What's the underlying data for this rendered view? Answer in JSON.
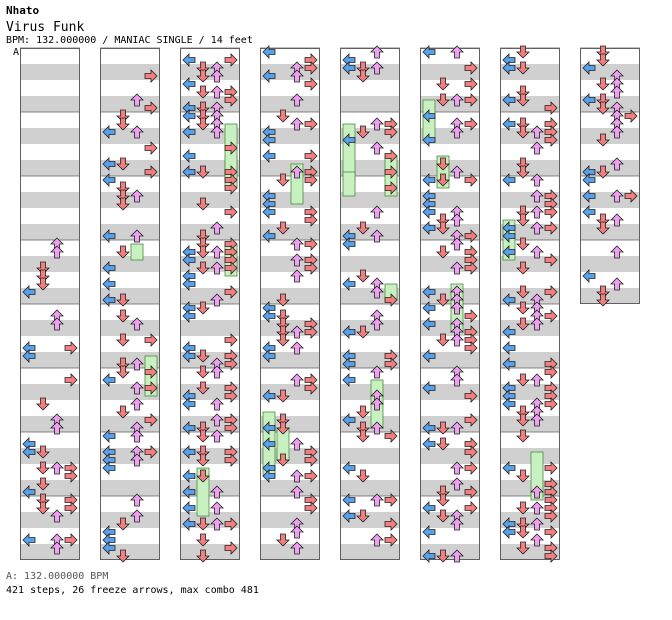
{
  "header": {
    "artist": "Nhato",
    "title": "Virus Funk",
    "meta": "BPM: 132.000000 / MANIAC SINGLE / 14 feet"
  },
  "marker": {
    "label": "A"
  },
  "footer": {
    "bpm_line": "A: 132.000000 BPM",
    "stats_line": "421 steps, 26 freeze arrows, max combo 481"
  },
  "colors": {
    "left": "#5aa0e8",
    "down": "#f08080",
    "up": "#f0a0f0",
    "right": "#f08080",
    "freeze": "#c8f0c0",
    "stripe": "#d0d0d0",
    "border": "#606060"
  },
  "chart_data": {
    "type": "step-chart",
    "columns": 8,
    "measures_per_column": 8,
    "lanes": [
      "left",
      "down",
      "up",
      "right"
    ],
    "steps": 421,
    "freeze_arrows": 26,
    "max_combo": 481
  }
}
